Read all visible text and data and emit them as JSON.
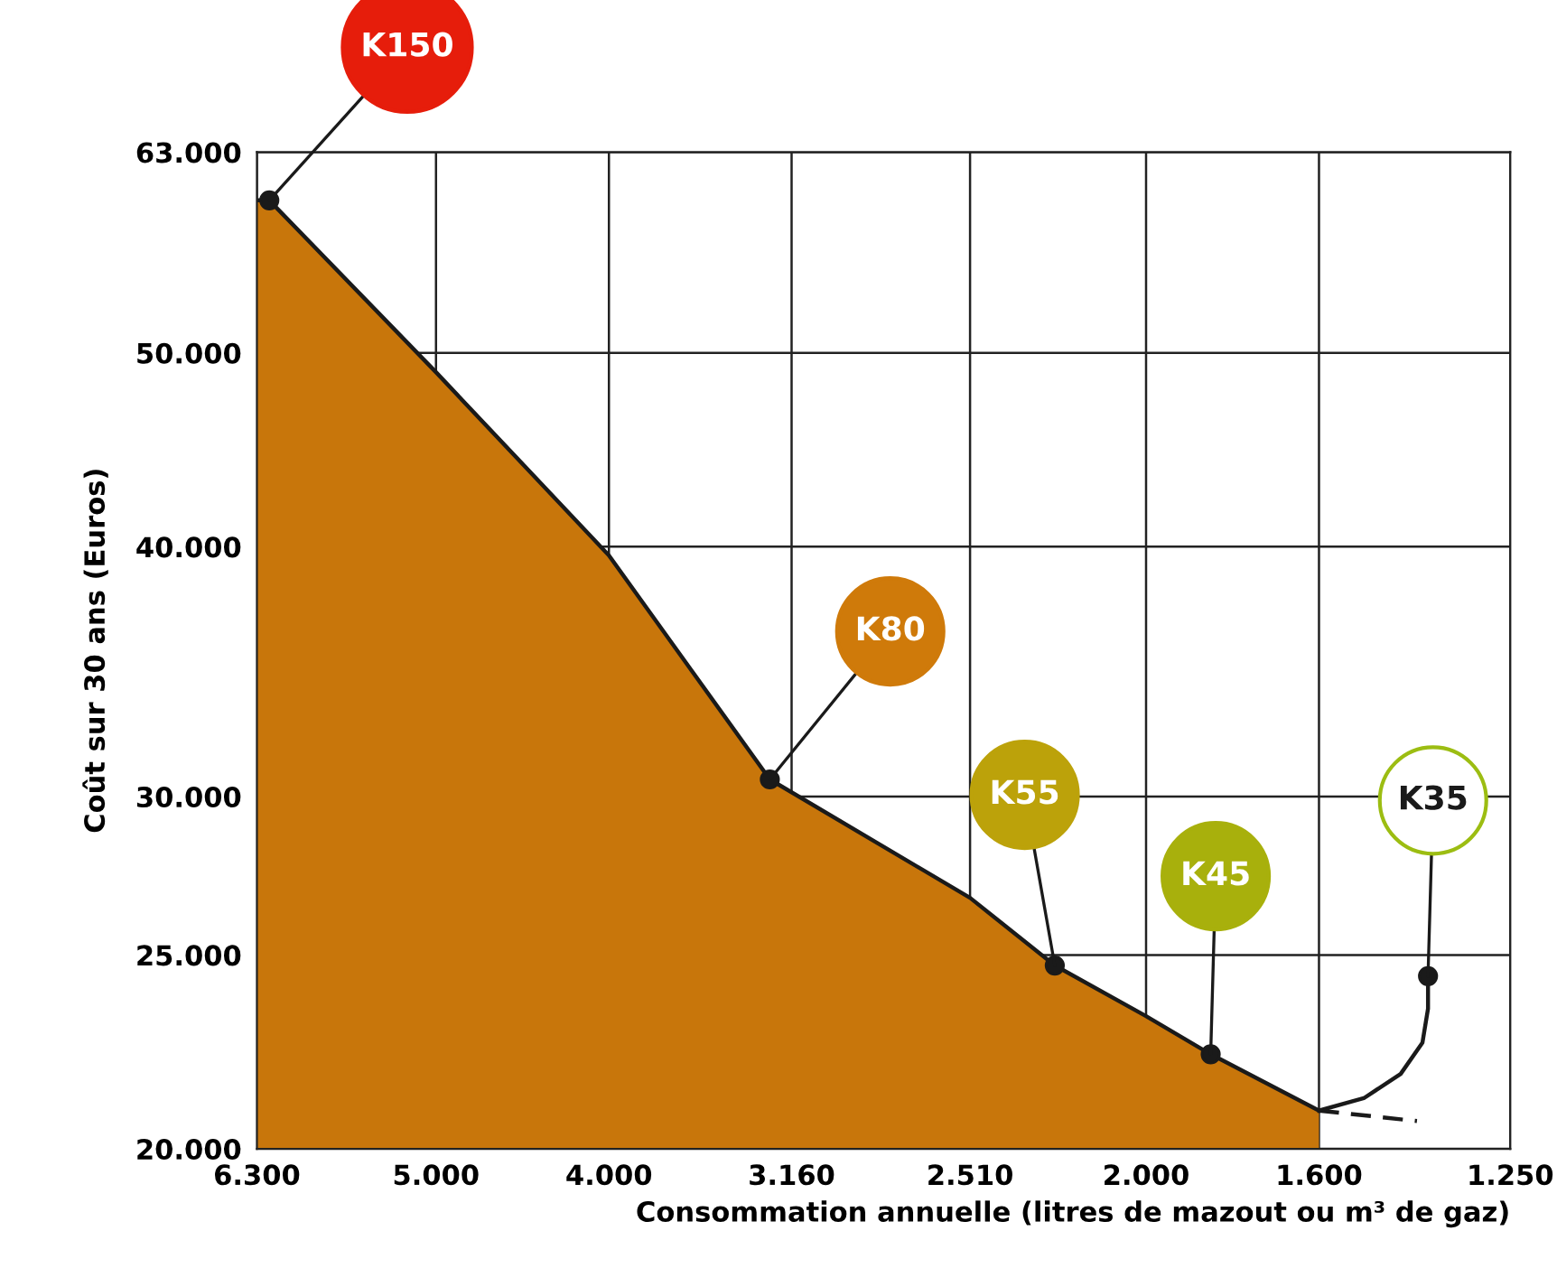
{
  "chart_data": {
    "type": "area",
    "xlabel": "Consommation annuelle (litres de mazout ou m³ de gaz)",
    "ylabel": "Coût sur 30 ans (Euros)",
    "series": [
      {
        "color": "#1a1a1a",
        "x": [
          6300,
          6200,
          5000,
          4000,
          3250,
          2510,
          2250,
          2000,
          1840,
          1600
        ],
        "values": [
          59600,
          59600,
          48900,
          39600,
          30600,
          26700,
          24700,
          23300,
          22300,
          20900
        ],
        "colors": [
          "#e8180c",
          "#e61d0b",
          "#e2430a",
          "#d9620a",
          "#cf7a0a",
          "#c4900a",
          "#bca20a",
          "#b0aa0a",
          "#a8b00c",
          "#9cbd12"
        ]
      },
      {
        "type": "line",
        "color": "#1a1a1a",
        "line_style": "dashed",
        "x": [
          1600,
          1410
        ],
        "values": [
          20900,
          20650
        ]
      },
      {
        "type": "line",
        "color": "#1a1a1a",
        "x": [
          1600,
          1510,
          1440,
          1400,
          1390,
          1390
        ],
        "values": [
          20900,
          21200,
          21800,
          22600,
          23500,
          24400
        ]
      }
    ],
    "annotations": [
      {
        "text": "K150",
        "x": 6200,
        "y": 59600
      },
      {
        "text": "K80",
        "x": 3250,
        "y": 30600
      },
      {
        "text": "K55",
        "x": 2250,
        "y": 24700
      },
      {
        "text": "K45",
        "x": 1840,
        "y": 22300
      },
      {
        "text": "K35",
        "x": 1390,
        "y": 24400
      }
    ],
    "xlim": [
      6300,
      1250
    ],
    "xticks": [
      {
        "value": 6300,
        "label": "6.300"
      },
      {
        "value": 5000,
        "label": "5.000"
      },
      {
        "value": 4000,
        "label": "4.000"
      },
      {
        "value": 3160,
        "label": "3.160"
      },
      {
        "value": 2510,
        "label": "2.510"
      },
      {
        "value": 2000,
        "label": "2.000"
      },
      {
        "value": 1600,
        "label": "1.600"
      },
      {
        "value": 1250,
        "label": "1.250"
      }
    ],
    "ylim": [
      20000,
      63000
    ],
    "yticks": [
      {
        "value": 20000,
        "label": "20.000"
      },
      {
        "value": 25000,
        "label": "25.000"
      },
      {
        "value": 30000,
        "label": "30.000"
      },
      {
        "value": 40000,
        "label": "40.000"
      },
      {
        "value": 50000,
        "label": "50.000"
      },
      {
        "value": 63000,
        "label": "63.000"
      }
    ],
    "log": "xy",
    "grid": true
  }
}
